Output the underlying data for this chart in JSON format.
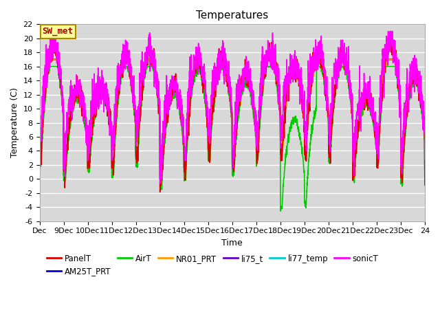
{
  "title": "Temperatures",
  "xlabel": "Time",
  "ylabel": "Temperature (C)",
  "ylim": [
    -6,
    22
  ],
  "xlim": [
    0,
    16
  ],
  "yticks": [
    -6,
    -4,
    -2,
    0,
    2,
    4,
    6,
    8,
    10,
    12,
    14,
    16,
    18,
    20,
    22
  ],
  "x_tick_labels": [
    "Dec",
    "9Dec",
    "10Dec",
    "11Dec",
    "12Dec",
    "13Dec",
    "14Dec",
    "15Dec",
    "16Dec",
    "17Dec",
    "18Dec",
    "19Dec",
    "20Dec",
    "21Dec",
    "22Dec",
    "23Dec",
    "24"
  ],
  "series_order": [
    "PanelT",
    "AM25T_PRT",
    "AirT",
    "NR01_PRT",
    "li75_t",
    "li77_temp",
    "sonicT"
  ],
  "series": {
    "PanelT": {
      "color": "#dd0000",
      "lw": 1.2
    },
    "AM25T_PRT": {
      "color": "#0000dd",
      "lw": 1.2
    },
    "AirT": {
      "color": "#00cc00",
      "lw": 1.2
    },
    "NR01_PRT": {
      "color": "#ff9900",
      "lw": 1.2
    },
    "li75_t": {
      "color": "#6600cc",
      "lw": 1.2
    },
    "li77_temp": {
      "color": "#00cccc",
      "lw": 1.2
    },
    "sonicT": {
      "color": "#ff00ff",
      "lw": 1.2
    }
  },
  "annotation": {
    "text": "SW_met",
    "facecolor": "#ffff99",
    "edgecolor": "#aa8800",
    "fontsize": 9,
    "text_color": "#aa0000"
  },
  "background_color": "#d8d8d8",
  "grid_color": "#ffffff",
  "title_fontsize": 11,
  "axis_label_fontsize": 9,
  "tick_fontsize": 8
}
